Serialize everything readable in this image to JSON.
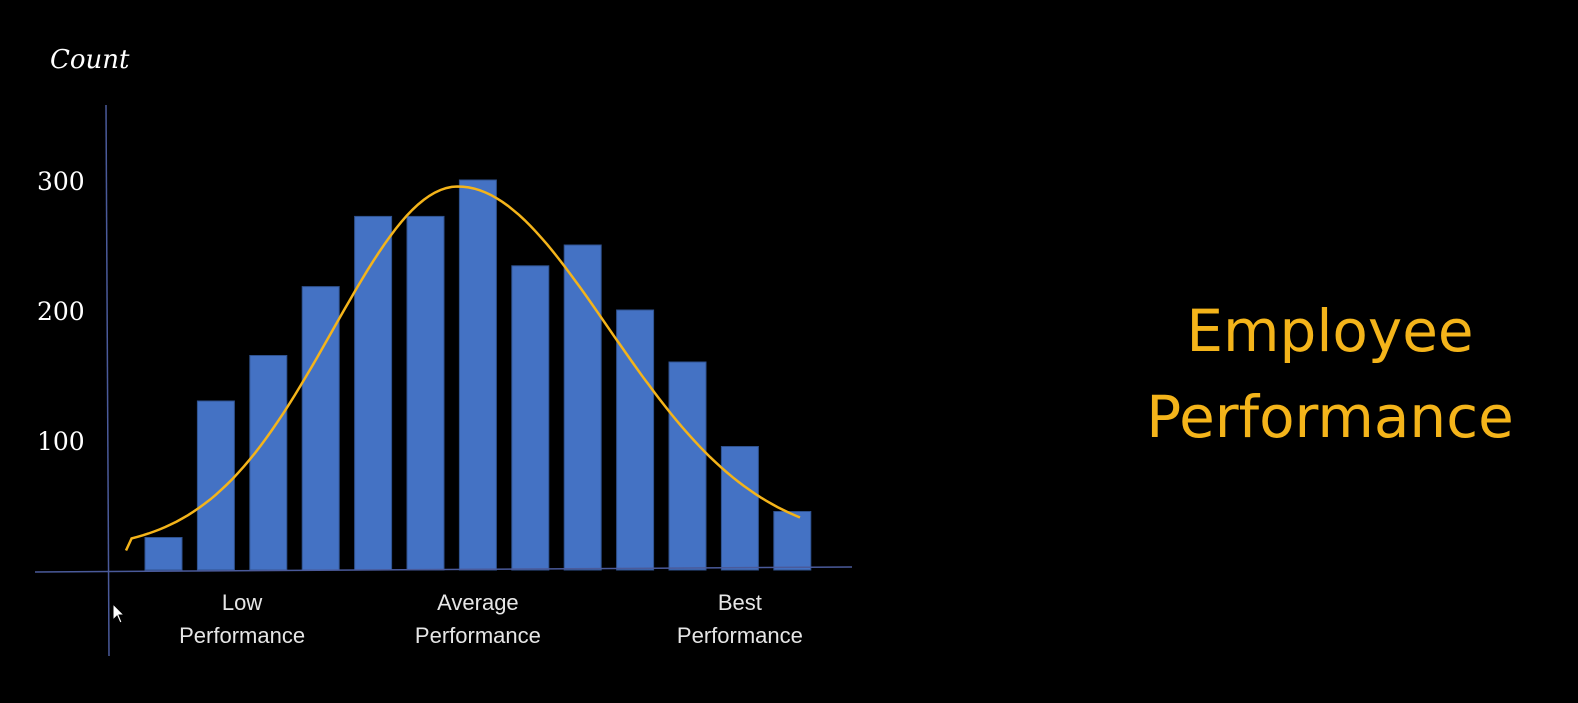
{
  "chart_data": {
    "type": "bar",
    "title": "Employee Performance",
    "title_lines": [
      "Employee",
      "Performance"
    ],
    "ylabel": "Count",
    "xlabel": "",
    "ylim": [
      0,
      300
    ],
    "yticks": [
      "100",
      "200",
      "300"
    ],
    "ytick_values": [
      100,
      200,
      300
    ],
    "values": [
      25,
      130,
      165,
      218,
      272,
      272,
      300,
      234,
      250,
      200,
      160,
      95,
      45
    ],
    "x_category_labels": [
      {
        "lines": [
          "Low",
          "Performance"
        ],
        "at_bar": 1.5
      },
      {
        "lines": [
          "Average",
          "Performance"
        ],
        "at_bar": 6
      },
      {
        "lines": [
          "Best",
          "Performance"
        ],
        "at_bar": 11
      }
    ],
    "curve": {
      "type": "normal-distribution-fit",
      "peak_value": 295,
      "peak_at_bar": 6,
      "start_value": 15,
      "end_value": 20
    },
    "grid": false,
    "legend": "none"
  },
  "colors": {
    "background": "#000000",
    "bar_fill": "#4472c4",
    "bar_stroke": "#2f528f",
    "curve": "#f4b41a",
    "axis": "#4a5a9a",
    "title": "#f4b41a"
  }
}
